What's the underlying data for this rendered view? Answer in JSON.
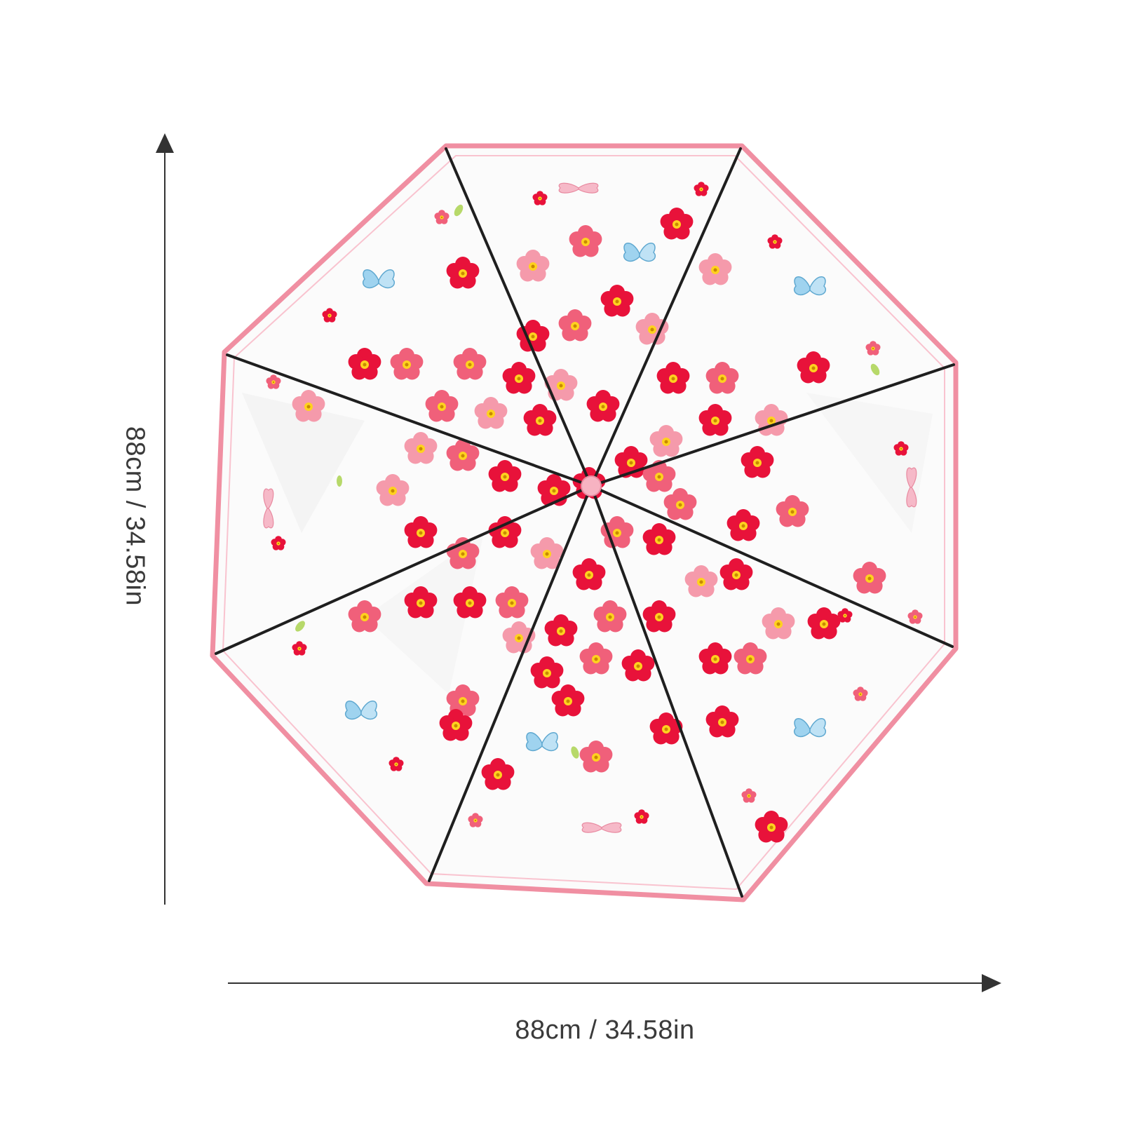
{
  "product": {
    "name": "clear-floral-umbrella",
    "canopy_color": "#f7f7f7",
    "trim_color": "#f08fa2",
    "rib_color": "#1f1f1f",
    "flower_colors": [
      "#e8123a",
      "#f0607a",
      "#f59aab"
    ],
    "center_color": "#ffd21f",
    "butterfly_colors": [
      "#7fc4e8",
      "#f2a1b8"
    ]
  },
  "dimensions": {
    "width_label": "88cm / 34.58in",
    "height_label": "88cm / 34.58in",
    "arrow_color": "#333333"
  }
}
